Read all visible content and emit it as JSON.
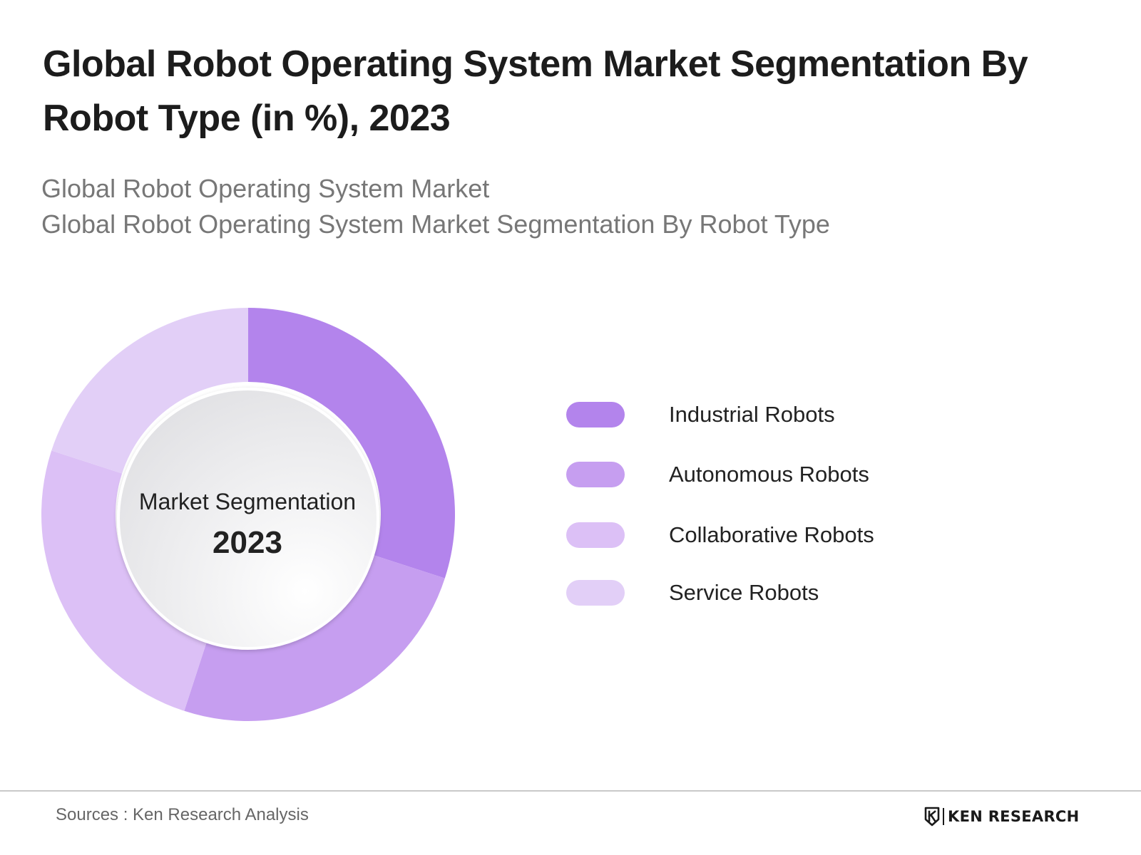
{
  "header": {
    "title": "Global Robot Operating System Market Segmentation By Robot Type (in %), 2023",
    "subtitle_line1": "Global Robot Operating System Market",
    "subtitle_line2": "Global Robot Operating System Market Segmentation By Robot Type"
  },
  "center": {
    "label": "Market Segmentation",
    "year": "2023"
  },
  "chart_data": {
    "type": "pie",
    "donut": true,
    "categories": [
      "Industrial Robots",
      "Autonomous Robots",
      "Collaborative Robots",
      "Service Robots"
    ],
    "values": [
      30,
      25,
      25,
      20
    ],
    "colors": [
      "#b384ec",
      "#c69ef0",
      "#dcc0f6",
      "#e2cff7"
    ],
    "start": "12 o'clock",
    "direction": "clockwise",
    "legend_position": "right"
  },
  "footer": {
    "source": "Sources : Ken Research Analysis",
    "brand": "KEN RESEARCH",
    "brand_icon": "ken-research-logo-icon"
  }
}
